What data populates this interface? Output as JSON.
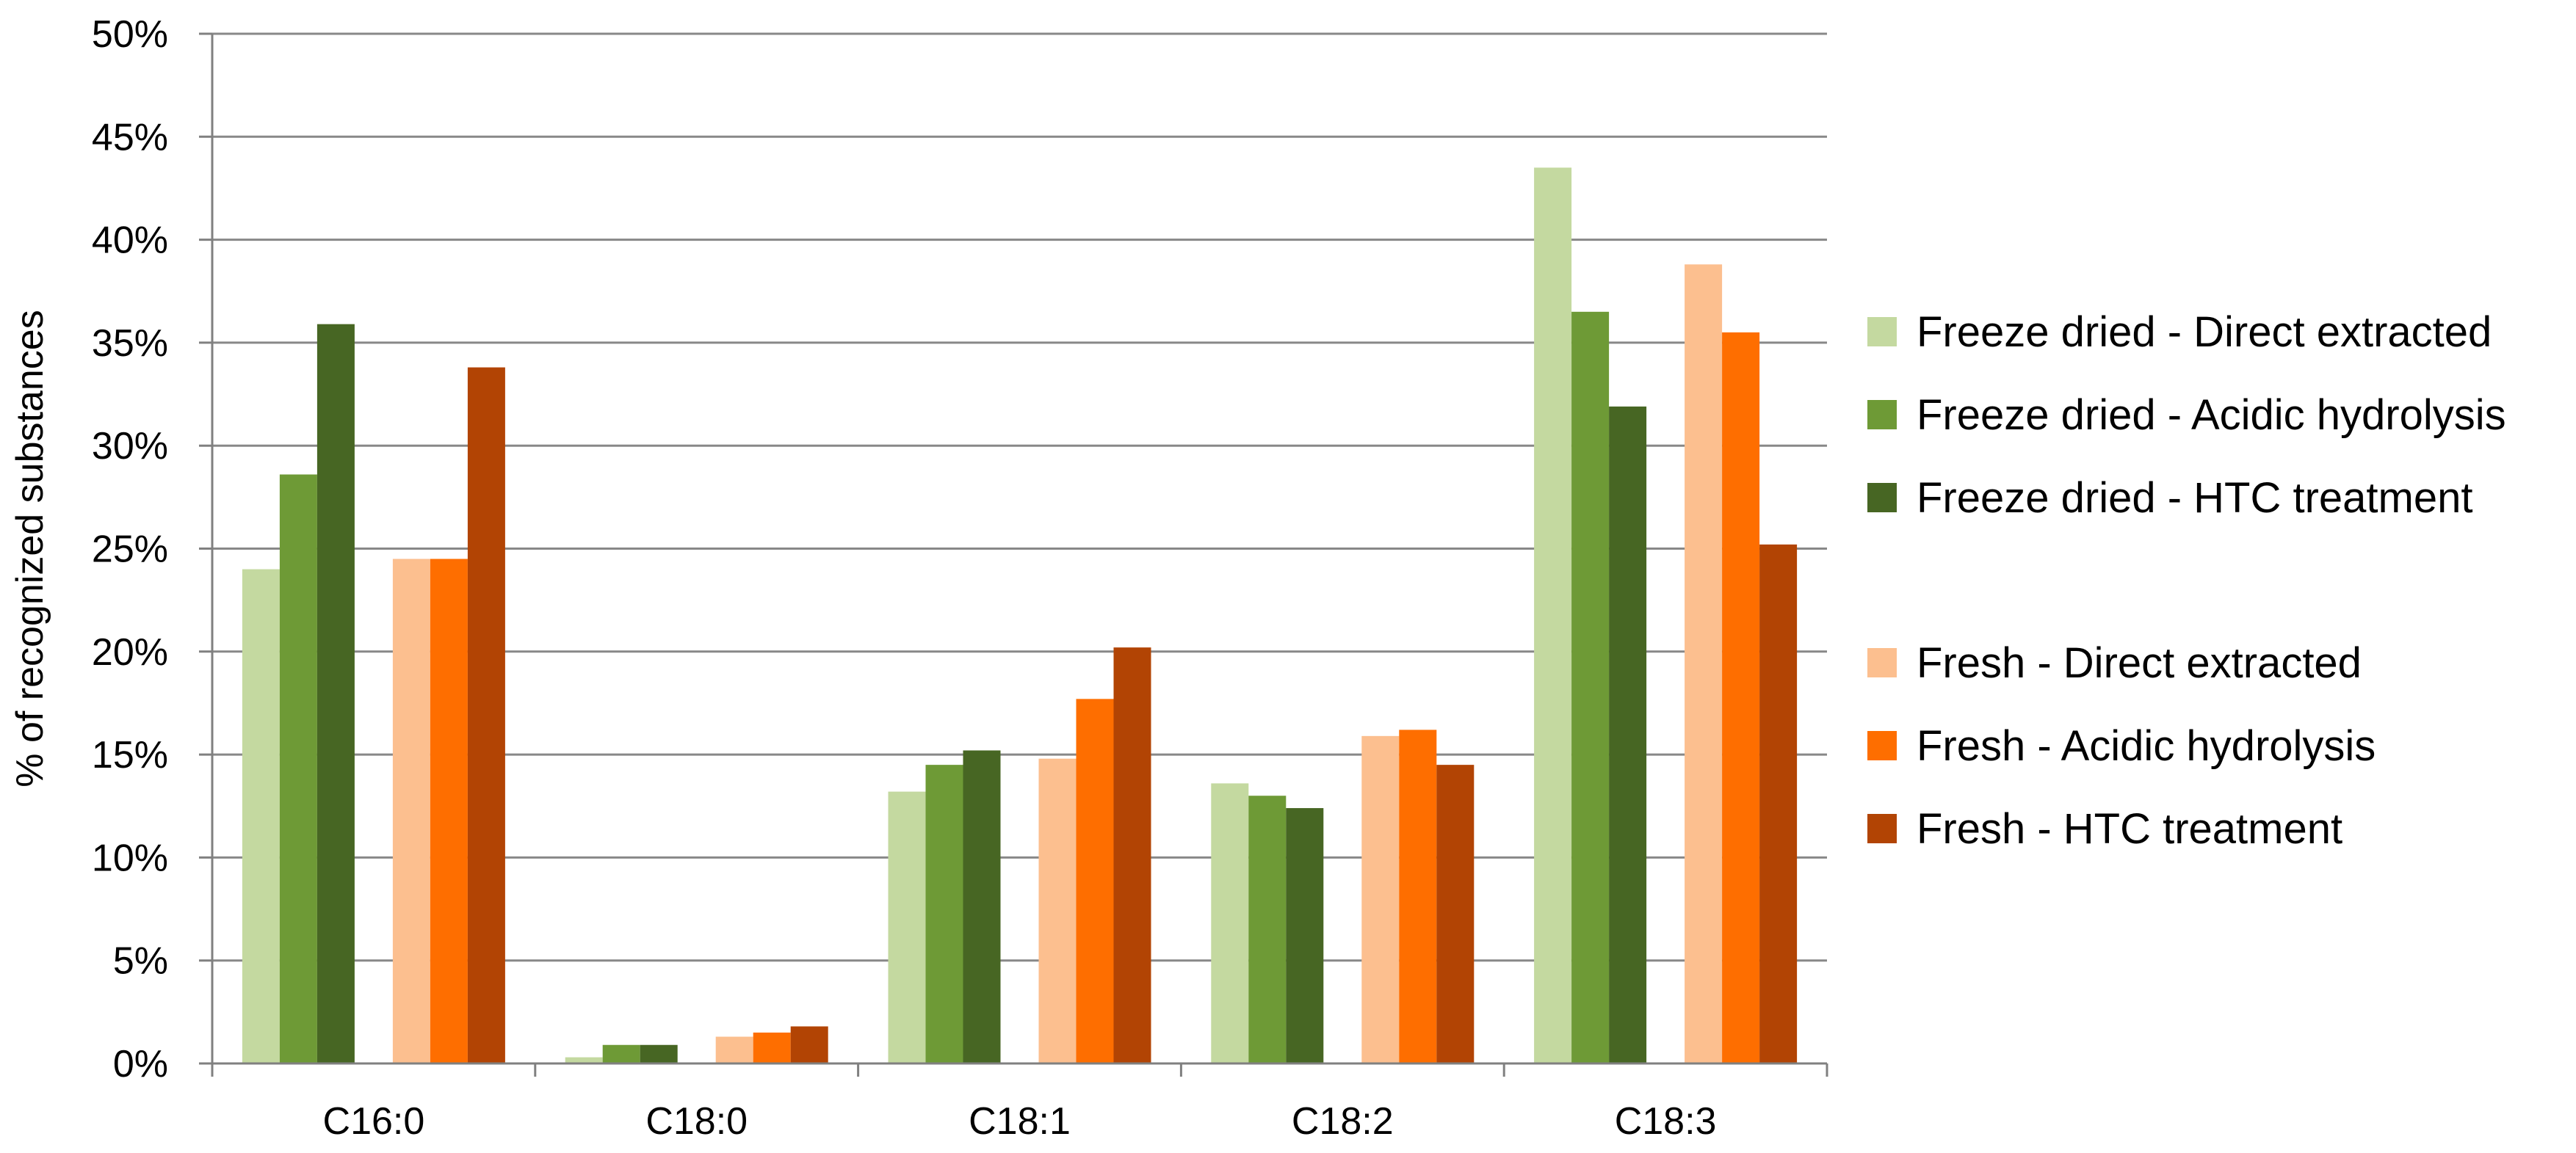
{
  "chart_data": {
    "type": "bar",
    "categories": [
      "C16:0",
      "C18:0",
      "C18:1",
      "C18:2",
      "C18:3"
    ],
    "ylabel": "% of recognized substances",
    "xlabel": "",
    "ylim": [
      0,
      50
    ],
    "y_ticks": [
      {
        "value": 0,
        "label": "0%"
      },
      {
        "value": 5,
        "label": "5%"
      },
      {
        "value": 10,
        "label": "10%"
      },
      {
        "value": 15,
        "label": "15%"
      },
      {
        "value": 20,
        "label": "20%"
      },
      {
        "value": 25,
        "label": "25%"
      },
      {
        "value": 30,
        "label": "30%"
      },
      {
        "value": 35,
        "label": "35%"
      },
      {
        "value": 40,
        "label": "40%"
      },
      {
        "value": 45,
        "label": "45%"
      },
      {
        "value": 50,
        "label": "50%"
      }
    ],
    "grid": true,
    "legend_position": "right",
    "series": [
      {
        "name": "Freeze dried - Direct extracted",
        "color": "#c4d9a0",
        "values": [
          24.0,
          0.3,
          13.2,
          13.6,
          43.5
        ]
      },
      {
        "name": "Freeze dried - Acidic hydrolysis",
        "color": "#6e9a36",
        "values": [
          28.6,
          0.9,
          14.5,
          13.0,
          36.5
        ]
      },
      {
        "name": "Freeze dried - HTC treatment",
        "color": "#476623",
        "values": [
          35.9,
          0.9,
          15.2,
          12.4,
          31.9
        ]
      },
      {
        "name": "Fresh - Direct extracted",
        "color": "#fcbf8f",
        "values": [
          24.5,
          1.3,
          14.8,
          15.9,
          38.8
        ]
      },
      {
        "name": "Fresh - Acidic hydrolysis",
        "color": "#fe6e00",
        "values": [
          24.5,
          1.5,
          17.7,
          16.2,
          35.5
        ]
      },
      {
        "name": "Fresh - HTC treatment",
        "color": "#b24404",
        "values": [
          33.8,
          1.8,
          20.2,
          14.5,
          25.2
        ]
      }
    ]
  }
}
